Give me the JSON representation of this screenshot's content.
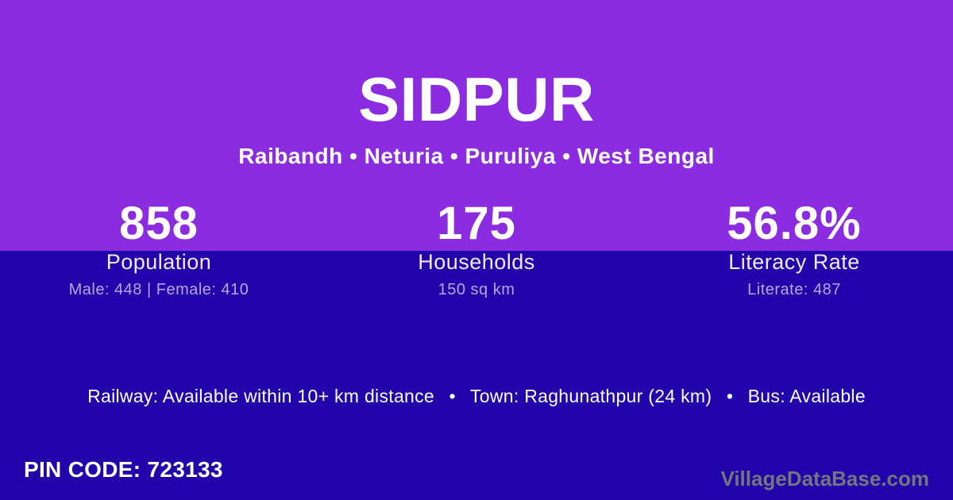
{
  "colors": {
    "top_background": "#8B2CE1",
    "bottom_background": "#2105AA",
    "primary_text": "#FFFFFF",
    "label_text": "#EFEBFB",
    "detail_text": "#B4A7E6",
    "watermark_text": "#75757F"
  },
  "header": {
    "title": "SIDPUR",
    "subtitle": "Raibandh • Neturia • Puruliya • West Bengal"
  },
  "stats": [
    {
      "value": "858",
      "label": "Population",
      "detail": "Male: 448 | Female: 410"
    },
    {
      "value": "175",
      "label": "Households",
      "detail": "150 sq km"
    },
    {
      "value": "56.8%",
      "label": "Literacy Rate",
      "detail": "Literate: 487"
    }
  ],
  "amenities_line": "Railway: Available within 10+ km distance  •  Town: Raghunathpur (24 km)  •  Bus: Available",
  "footer": {
    "pin_code": "PIN CODE: 723133",
    "watermark": "VillageDataBase.com"
  }
}
